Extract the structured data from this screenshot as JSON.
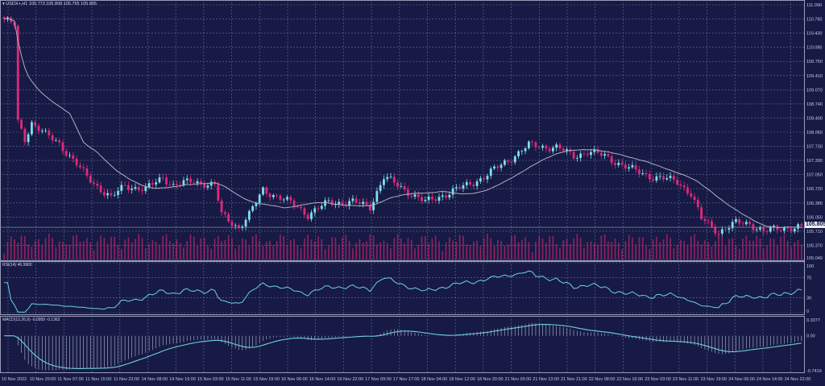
{
  "header": {
    "symbol": "USDX+,H1",
    "ohlc": "105.773 105.808 105.755 105.805"
  },
  "rsi_label": "RSI(14) 46.9960",
  "macd_label": "MACD(12,26,9) -0.0959 -0.1362",
  "current_price": "105.805",
  "colors": {
    "background": "#161a45",
    "bull": "#7fe0e8",
    "bear": "#e0287a",
    "ma": "#b0b0c0",
    "indicator": "#6fd0e0",
    "volume": "#c0246a",
    "grid": "#6a6f9a"
  },
  "chart_data": [
    {
      "type": "candlestick",
      "title": "USDX+,H1",
      "ylim": [
        105.04,
        111.09
      ],
      "y_ticks": [
        "111.090",
        "110.760",
        "110.420",
        "110.080",
        "109.750",
        "109.410",
        "109.070",
        "108.740",
        "108.400",
        "108.060",
        "107.730",
        "107.390",
        "107.050",
        "106.720",
        "106.380",
        "106.050",
        "105.710",
        "105.370",
        "105.040"
      ],
      "x_ticks": [
        "10 Nov 2022",
        "10 Nov 20:00",
        "11 Nov 07:00",
        "11 Nov 15:00",
        "11 Nov 23:00",
        "14 Nov 08:00",
        "14 Nov 16:00",
        "15 Nov 03:00",
        "15 Nov 11:00",
        "15 Nov 19:00",
        "16 Nov 06:00",
        "16 Nov 14:00",
        "16 Nov 22:00",
        "17 Nov 09:00",
        "17 Nov 17:00",
        "18 Nov 04:00",
        "18 Nov 12:00",
        "18 Nov 20:00",
        "21 Nov 05:00",
        "21 Nov 13:00",
        "21 Nov 21:00",
        "22 Nov 08:00",
        "22 Nov 16:00",
        "23 Nov 03:00",
        "23 Nov 11:00",
        "23 Nov 19:00",
        "24 Nov 06:00",
        "24 Nov 14:00",
        "24 Nov 22:00"
      ],
      "bars": 232,
      "close_keypoints": [
        [
          0,
          110.75
        ],
        [
          3,
          110.6
        ],
        [
          4,
          108.3
        ],
        [
          6,
          107.9
        ],
        [
          8,
          108.3
        ],
        [
          12,
          108.0
        ],
        [
          16,
          107.8
        ],
        [
          24,
          107.0
        ],
        [
          31,
          106.5
        ],
        [
          35,
          106.8
        ],
        [
          41,
          106.7
        ],
        [
          46,
          107.0
        ],
        [
          49,
          106.8
        ],
        [
          55,
          106.9
        ],
        [
          61,
          106.8
        ],
        [
          63,
          106.1
        ],
        [
          68,
          105.8
        ],
        [
          71,
          106.1
        ],
        [
          75,
          106.7
        ],
        [
          80,
          106.5
        ],
        [
          85,
          106.3
        ],
        [
          88,
          106.1
        ],
        [
          94,
          106.4
        ],
        [
          101,
          106.4
        ],
        [
          106,
          106.3
        ],
        [
          110,
          107.0
        ],
        [
          114,
          106.8
        ],
        [
          118,
          106.6
        ],
        [
          122,
          106.4
        ],
        [
          128,
          106.6
        ],
        [
          134,
          106.8
        ],
        [
          139,
          107.0
        ],
        [
          146,
          107.4
        ],
        [
          152,
          107.75
        ],
        [
          160,
          107.7
        ],
        [
          165,
          107.5
        ],
        [
          169,
          107.6
        ],
        [
          174,
          107.5
        ],
        [
          181,
          107.2
        ],
        [
          188,
          107.0
        ],
        [
          195,
          106.9
        ],
        [
          199,
          106.6
        ],
        [
          202,
          106.0
        ],
        [
          207,
          105.7
        ],
        [
          212,
          105.9
        ],
        [
          216,
          105.9
        ],
        [
          220,
          105.7
        ],
        [
          226,
          105.8
        ],
        [
          231,
          105.8
        ]
      ],
      "moving_average": "visible (gray)"
    },
    {
      "type": "line",
      "title": "RSI(14) 46.9960",
      "ylim": [
        0,
        100
      ],
      "y_ticks": [
        "100",
        "70",
        "30",
        "0"
      ]
    },
    {
      "type": "bar+line",
      "title": "MACD(12,26,9) -0.0959 -0.1362",
      "ylim": [
        -0.7419,
        0.3377
      ],
      "y_ticks": [
        "0.3377",
        "0.00",
        "-0.7419"
      ]
    }
  ]
}
